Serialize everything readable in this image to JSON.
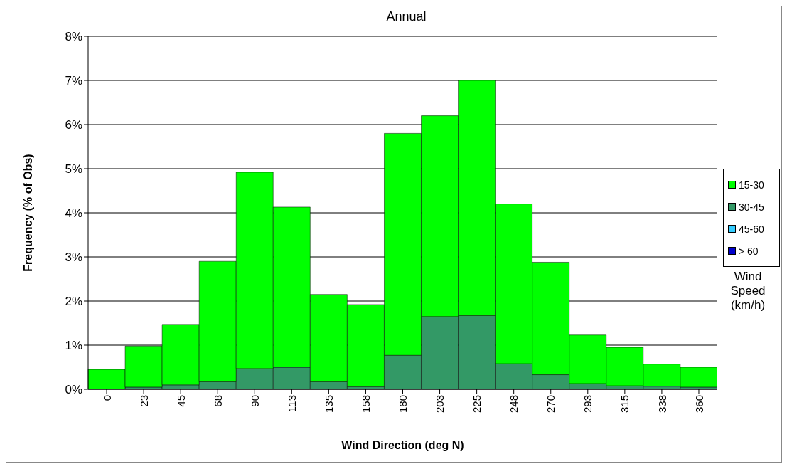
{
  "chart_data": {
    "type": "bar",
    "title": "Annual",
    "xlabel": "Wind Direction (deg N)",
    "ylabel": "Frequency (% of Obs)",
    "legend_title": "Wind Speed (km/h)",
    "stacked": true,
    "grid": "y",
    "legend": "right",
    "categories": [
      "0",
      "23",
      "45",
      "68",
      "90",
      "113",
      "135",
      "158",
      "180",
      "203",
      "225",
      "248",
      "270",
      "293",
      "315",
      "338",
      "360"
    ],
    "ylim": [
      0,
      8
    ],
    "yticks": [
      {
        "value": 0,
        "label": "0%"
      },
      {
        "value": 1,
        "label": "1%"
      },
      {
        "value": 2,
        "label": "2%"
      },
      {
        "value": 3,
        "label": "3%"
      },
      {
        "value": 4,
        "label": "4%"
      },
      {
        "value": 5,
        "label": "5%"
      },
      {
        "value": 6,
        "label": "6%"
      },
      {
        "value": 7,
        "label": "7%"
      },
      {
        "value": 8,
        "label": "8%"
      }
    ],
    "series": [
      {
        "name": "> 60",
        "color": "#0000cc",
        "values": [
          0,
          0,
          0,
          0,
          0,
          0,
          0,
          0,
          0,
          0,
          0,
          0,
          0,
          0,
          0,
          0,
          0
        ]
      },
      {
        "name": "45-60",
        "color": "#33ccff",
        "values": [
          0,
          0,
          0,
          0,
          0,
          0,
          0,
          0,
          0,
          0,
          0,
          0,
          0,
          0,
          0,
          0,
          0
        ]
      },
      {
        "name": "30-45",
        "color": "#339966",
        "values": [
          0,
          0.05,
          0.1,
          0.17,
          0.47,
          0.5,
          0.17,
          0.06,
          0.77,
          1.65,
          1.67,
          0.58,
          0.33,
          0.13,
          0.08,
          0.07,
          0.05
        ]
      },
      {
        "name": "15-30",
        "color": "#00ff00",
        "values": [
          0.45,
          0.93,
          1.37,
          2.73,
          4.45,
          3.63,
          1.98,
          1.86,
          5.03,
          4.55,
          5.33,
          3.62,
          2.55,
          1.1,
          0.87,
          0.5,
          0.45
        ]
      }
    ]
  }
}
